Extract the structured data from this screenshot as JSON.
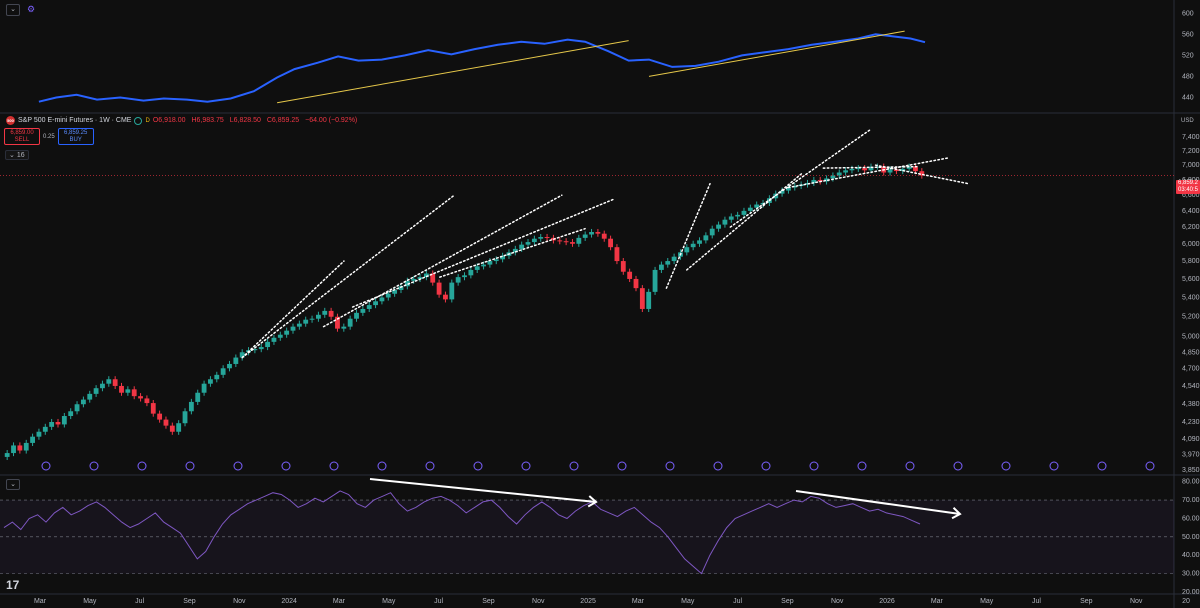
{
  "header": {
    "symbol_title": "S&P 500 E-mini Futures · 1W · CME",
    "logo_text": "500",
    "interval_chip": "D",
    "ohlc": {
      "open": "O6,918.00",
      "high": "H6,983.75",
      "low": "L6,828.50",
      "close": "C6,859.25",
      "change": "−64.00 (−0.92%)"
    },
    "sell_price": "6,859.00",
    "sell_label": "SELL",
    "spread": "0.25",
    "buy_price": "6,859.25",
    "buy_label": "BUY",
    "indicator_count": "16",
    "currency": "USD",
    "last_price_tag": "6,859.2",
    "countdown": "03:40:5"
  },
  "colors": {
    "up": "#26a69a",
    "down": "#f23645",
    "ratio_line": "#2962ff",
    "trendline": "#e6c84a",
    "rsi_line": "#7e57c2",
    "bg": "#0f0f0f"
  },
  "x_axis": {
    "labels": [
      "Mar",
      "May",
      "Jul",
      "Sep",
      "Nov",
      "2024",
      "Mar",
      "May",
      "Jul",
      "Sep",
      "Nov",
      "2025",
      "Mar",
      "May",
      "Jul",
      "Sep",
      "Nov",
      "2026",
      "Mar",
      "May",
      "Jul",
      "Sep",
      "Nov",
      "20"
    ]
  },
  "chart_data": [
    {
      "type": "line",
      "panel": "ratio",
      "y_ticks": [
        "600",
        "560",
        "520",
        "480",
        "440"
      ],
      "ylim": [
        420,
        610
      ],
      "x": [
        2023.12,
        2023.18,
        2023.25,
        2023.32,
        2023.4,
        2023.48,
        2023.55,
        2023.63,
        2023.7,
        2023.78,
        2023.86,
        2023.94,
        2024.0,
        2024.08,
        2024.15,
        2024.22,
        2024.3,
        2024.38,
        2024.46,
        2024.54,
        2024.62,
        2024.7,
        2024.78,
        2024.86,
        2024.94,
        2025.0,
        2025.08,
        2025.15,
        2025.22,
        2025.3,
        2025.38,
        2025.46,
        2025.54,
        2025.62,
        2025.7,
        2025.78,
        2025.86,
        2025.94,
        2026.0,
        2026.06,
        2026.12,
        2026.17
      ],
      "values": [
        432,
        440,
        445,
        436,
        440,
        434,
        438,
        436,
        432,
        438,
        452,
        478,
        494,
        506,
        518,
        510,
        512,
        520,
        530,
        522,
        532,
        540,
        546,
        542,
        550,
        546,
        528,
        510,
        512,
        498,
        500,
        508,
        520,
        526,
        532,
        540,
        546,
        552,
        560,
        556,
        552,
        545
      ]
    },
    {
      "type": "candlestick",
      "panel": "price",
      "y_ticks": [
        "7,400.00",
        "7,200.00",
        "7,000.00",
        "6,800.00",
        "6,600.00",
        "6,400.00",
        "6,200.00",
        "6,000.00",
        "5,800.00",
        "5,600.00",
        "5,400.00",
        "5,200.00",
        "5,000.00",
        "4,850.00",
        "4,700.00",
        "4,540.00",
        "4,380.00",
        "4,230.00",
        "4,090.00",
        "3,970.00",
        "3,850.00"
      ],
      "ylim": [
        3850,
        7500
      ],
      "x_start": 2023.0,
      "x_end": 2026.17,
      "close": [
        3980,
        4040,
        4000,
        4060,
        4110,
        4150,
        4190,
        4230,
        4210,
        4280,
        4320,
        4380,
        4420,
        4470,
        4520,
        4560,
        4600,
        4540,
        4480,
        4510,
        4450,
        4430,
        4390,
        4300,
        4250,
        4200,
        4150,
        4220,
        4320,
        4400,
        4480,
        4560,
        4600,
        4640,
        4700,
        4740,
        4800,
        4850,
        4870,
        4880,
        4900,
        4950,
        4990,
        5020,
        5060,
        5100,
        5130,
        5170,
        5180,
        5220,
        5260,
        5200,
        5080,
        5100,
        5180,
        5240,
        5280,
        5320,
        5360,
        5400,
        5440,
        5480,
        5520,
        5580,
        5600,
        5620,
        5660,
        5560,
        5430,
        5380,
        5560,
        5620,
        5640,
        5700,
        5740,
        5760,
        5800,
        5820,
        5860,
        5900,
        5940,
        5990,
        6020,
        6060,
        6080,
        6070,
        6040,
        6030,
        6020,
        6000,
        6070,
        6110,
        6140,
        6120,
        6060,
        5960,
        5800,
        5680,
        5600,
        5500,
        5280,
        5460,
        5700,
        5760,
        5800,
        5850,
        5900,
        5960,
        6000,
        6040,
        6100,
        6180,
        6230,
        6290,
        6330,
        6350,
        6400,
        6440,
        6480,
        6500,
        6560,
        6620,
        6660,
        6700,
        6720,
        6740,
        6760,
        6800,
        6780,
        6820,
        6860,
        6900,
        6930,
        6950,
        6960,
        6930,
        6980,
        6980,
        6900,
        6940,
        6920,
        6950,
        6980,
        6918,
        6859
      ]
    },
    {
      "type": "line",
      "panel": "rsi",
      "y_ticks": [
        "80.00",
        "70.00",
        "60.00",
        "50.00",
        "40.00",
        "30.00",
        "20.00"
      ],
      "ylim": [
        20,
        82
      ],
      "overbought": 70,
      "oversold": 30,
      "mid": 50,
      "values": [
        55,
        58,
        54,
        60,
        62,
        58,
        63,
        66,
        62,
        64,
        67,
        69,
        66,
        62,
        58,
        55,
        57,
        60,
        63,
        58,
        55,
        52,
        45,
        38,
        42,
        50,
        57,
        62,
        65,
        68,
        70,
        72,
        74,
        73,
        70,
        66,
        68,
        71,
        69,
        72,
        75,
        73,
        68,
        66,
        70,
        72,
        74,
        68,
        64,
        66,
        69,
        71,
        72,
        70,
        67,
        63,
        66,
        69,
        70,
        66,
        61,
        57,
        62,
        66,
        69,
        66,
        62,
        60,
        64,
        67,
        69,
        65,
        63,
        61,
        64,
        66,
        62,
        58,
        55,
        50,
        44,
        38,
        34,
        30,
        40,
        48,
        55,
        60,
        62,
        64,
        66,
        68,
        66,
        68,
        70,
        69,
        72,
        71,
        68,
        66,
        67,
        68,
        66,
        64,
        65,
        63,
        62,
        61,
        59,
        57
      ]
    }
  ]
}
